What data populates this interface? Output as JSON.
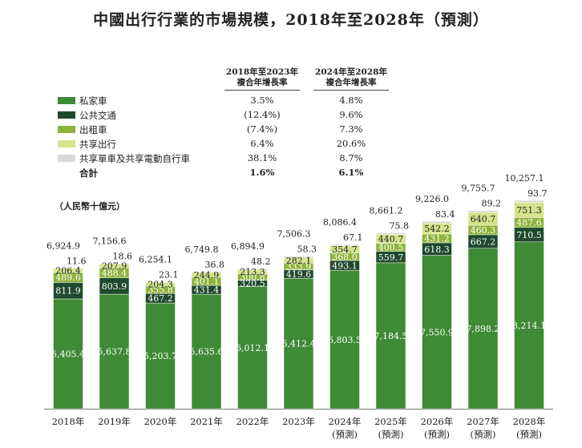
{
  "title": "中國出行行業的市場規模，2018年至2028年（預測）",
  "unit_label": "（人民幣十億元）",
  "cagr_headers": [
    {
      "line1": "2018年至2023年",
      "line2": "複合年增長率"
    },
    {
      "line1": "2024年至2028年",
      "line2": "複合年增長率"
    }
  ],
  "legend": [
    {
      "name": "私家車",
      "color": "#3e8a35",
      "cagr1": "3.5%",
      "cagr2": "4.8%"
    },
    {
      "name": "公共交通",
      "color": "#1f4a2c",
      "cagr1": "(12.4%)",
      "cagr2": "9.6%"
    },
    {
      "name": "出租車",
      "color": "#8cb33a",
      "cagr1": "(7.4%)",
      "cagr2": "7.3%"
    },
    {
      "name": "共享出行",
      "color": "#d5e58c",
      "cagr1": "6.4%",
      "cagr2": "20.6%"
    },
    {
      "name": "共享單車及共享電動自行車",
      "color": "#d9d9d9",
      "cagr1": "38.1%",
      "cagr2": "8.7%"
    }
  ],
  "total_row": {
    "name": "合計",
    "cagr1": "1.6%",
    "cagr2": "6.1%"
  },
  "chart_data": {
    "type": "bar",
    "stacked": true,
    "categories": [
      "2018年",
      "2019年",
      "2020年",
      "2021年",
      "2022年",
      "2023年",
      "2024年",
      "2025年",
      "2026年",
      "2027年",
      "2028年"
    ],
    "category_sublabels": [
      "",
      "",
      "",
      "",
      "",
      "",
      "(預測)",
      "(預測)",
      "(預測)",
      "(預測)",
      "(預測)"
    ],
    "series": [
      {
        "name": "私家車",
        "color": "#3e8a35",
        "label_color": "#ffffff",
        "values": [
          5405.4,
          5637.8,
          5203.7,
          5635.6,
          6012.1,
          6412.4,
          6803.5,
          7184.5,
          7550.9,
          7898.2,
          8214.1
        ],
        "labels": [
          "5,405.4",
          "5,637.8",
          "5,203.7",
          "5,635.6",
          "6,012.1",
          "6,412.4",
          "6,803.5",
          "7,184.5",
          "7,550.9",
          "7,898.2",
          "8,214.1"
        ]
      },
      {
        "name": "公共交通",
        "color": "#1f4a2c",
        "label_color": "#ffffff",
        "values": [
          811.9,
          803.9,
          467.2,
          431.4,
          320.5,
          419.6,
          493.1,
          559.7,
          618.3,
          667.2,
          710.5
        ],
        "labels": [
          "811.9",
          "803.9",
          "467.2",
          "431.4",
          "320.5",
          "419.6",
          "493.1",
          "559.7",
          "618.3",
          "667.2",
          "710.5"
        ]
      },
      {
        "name": "出租車",
        "color": "#8cb33a",
        "label_color": "#ffffff",
        "values": [
          489.6,
          488.4,
          355.8,
          401.1,
          300.8,
          333.9,
          368.0,
          400.5,
          431.2,
          460.3,
          487.6
        ],
        "labels": [
          "489.6",
          "488.4",
          "355.8",
          "401.1",
          "300.8",
          "333.9",
          "368.0",
          "400.5",
          "431.2",
          "460.3",
          "487.6"
        ]
      },
      {
        "name": "共享出行",
        "color": "#d5e58c",
        "label_color": "#222222",
        "values": [
          206.4,
          207.9,
          204.3,
          244.9,
          213.3,
          282.1,
          354.7,
          440.7,
          542.2,
          640.7,
          751.3
        ],
        "labels": [
          "206.4",
          "207.9",
          "204.3",
          "244.9",
          "213.3",
          "282.1",
          "354.7",
          "440.7",
          "542.2",
          "640.7",
          "751.3"
        ]
      },
      {
        "name": "共享單車及共享電動自行車",
        "color": "#d9d9d9",
        "label_color": "#222222",
        "values": [
          11.6,
          18.6,
          23.1,
          36.8,
          48.2,
          58.3,
          67.1,
          75.8,
          83.4,
          89.2,
          93.7
        ],
        "labels": [
          "11.6",
          "18.6",
          "23.1",
          "36.8",
          "48.2",
          "58.3",
          "67.1",
          "75.8",
          "83.4",
          "89.2",
          "93.7"
        ]
      }
    ],
    "totals": [
      6924.9,
      7156.6,
      6254.1,
      6749.8,
      6894.9,
      7506.3,
      8086.4,
      8661.2,
      9226.0,
      9755.7,
      10257.1
    ],
    "total_labels": [
      "6,924.9",
      "7,156.6",
      "6,254.1",
      "6,749.8",
      "6,894.9",
      "7,506.3",
      "8,086.4",
      "8,661.2",
      "9,226.0",
      "9,755.7",
      "10,257.1"
    ],
    "ylim": [
      0,
      10257.1
    ],
    "grid": false,
    "legend_position": "top-left"
  }
}
